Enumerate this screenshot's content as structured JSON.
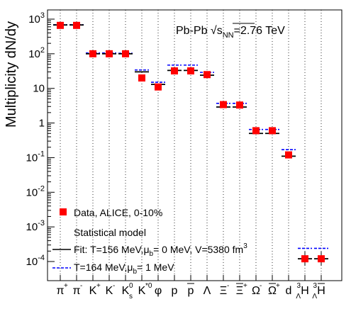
{
  "chart_data": {
    "type": "scatter",
    "title": "Pb-Pb  √s",
    "title_sub": "NN",
    "title_tail": "=2.76 TeV",
    "ylabel": "Multiplicity dN/dy",
    "xlabel": "",
    "yscale": "log",
    "ylim": [
      3e-05,
      1000
    ],
    "grid": "vertical dotted",
    "legend_position": "bottom-left",
    "ytick_labels": [
      {
        "value": 1000,
        "base": "10",
        "exp": "3"
      },
      {
        "value": 100,
        "base": "10",
        "exp": "2"
      },
      {
        "value": 10,
        "base": "10",
        "exp": ""
      },
      {
        "value": 1,
        "base": "1",
        "exp": ""
      },
      {
        "value": 0.1,
        "base": "10",
        "exp": "-1"
      },
      {
        "value": 0.01,
        "base": "10",
        "exp": "-2"
      },
      {
        "value": 0.001,
        "base": "10",
        "exp": "-3"
      },
      {
        "value": 0.0001,
        "base": "10",
        "exp": "-4"
      }
    ],
    "categories": [
      {
        "main": "π",
        "sup": "+",
        "sub": "",
        "over": false
      },
      {
        "main": "π",
        "sup": "-",
        "sub": "",
        "over": false
      },
      {
        "main": "K",
        "sup": "+",
        "sub": "",
        "over": false
      },
      {
        "main": "K",
        "sup": "-",
        "sub": "",
        "over": false
      },
      {
        "main": "K",
        "sup": "0",
        "sub": "s",
        "over": false
      },
      {
        "main": "K",
        "sup": "*0",
        "sub": "",
        "over": false
      },
      {
        "main": "φ",
        "sup": "",
        "sub": "",
        "over": false
      },
      {
        "main": "p",
        "sup": "",
        "sub": "",
        "over": false
      },
      {
        "main": "p",
        "sup": "",
        "sub": "",
        "over": true
      },
      {
        "main": "Λ",
        "sup": "",
        "sub": "",
        "over": false
      },
      {
        "main": "Ξ",
        "sup": "-",
        "sub": "",
        "over": false
      },
      {
        "main": "Ξ",
        "sup": "+",
        "sub": "",
        "over": true
      },
      {
        "main": "Ω",
        "sup": "-",
        "sub": "",
        "over": false
      },
      {
        "main": "Ω",
        "sup": "+",
        "sub": "",
        "over": true
      },
      {
        "main": "d",
        "sup": "",
        "sub": "",
        "over": false
      },
      {
        "main": "H",
        "sup": "3",
        "sub": "Λ",
        "over": false
      },
      {
        "main": "H",
        "sup": "3",
        "sub": "Λ",
        "over": true
      }
    ],
    "series": [
      {
        "name": "Data, ALICE, 0-10%",
        "marker": "square",
        "color": "#ff0000",
        "values": [
          660,
          660,
          100,
          100,
          100,
          20,
          11,
          32,
          32,
          25,
          3.4,
          3.3,
          0.6,
          0.6,
          0.12,
          0.00012,
          0.00012
        ]
      },
      {
        "name": "Fit: T=156 MeV,μ_b= 0 MeV, V=5380 fm³",
        "line": "solid",
        "color": "#000000",
        "values": [
          680,
          680,
          100,
          100,
          100,
          30,
          13,
          33,
          33,
          24,
          2.9,
          2.9,
          0.5,
          0.5,
          0.11,
          0.00012,
          0.00012
        ]
      },
      {
        "name": "T=164 MeV,μ_b= 1 MeV",
        "line": "dashed",
        "color": "#0000ff",
        "values": [
          690,
          690,
          105,
          105,
          103,
          34,
          15,
          47,
          47,
          29,
          3.7,
          3.7,
          0.65,
          0.65,
          0.17,
          0.00024,
          0.00024
        ]
      }
    ],
    "legend": {
      "data_label": "Data, ALICE, 0-10%",
      "model_heading": "Statistical model",
      "fit_label_a": "Fit: T=156 MeV,μ",
      "fit_label_sub": "b",
      "fit_label_b": "= 0 MeV, V=5380 fm",
      "fit_label_sup": "3",
      "alt_label_a": "T=164 MeV,μ",
      "alt_label_sub": "b",
      "alt_label_b": "= 1 MeV"
    },
    "colors": {
      "data": "#ff0000",
      "fit": "#000000",
      "alt": "#0000ff"
    }
  }
}
